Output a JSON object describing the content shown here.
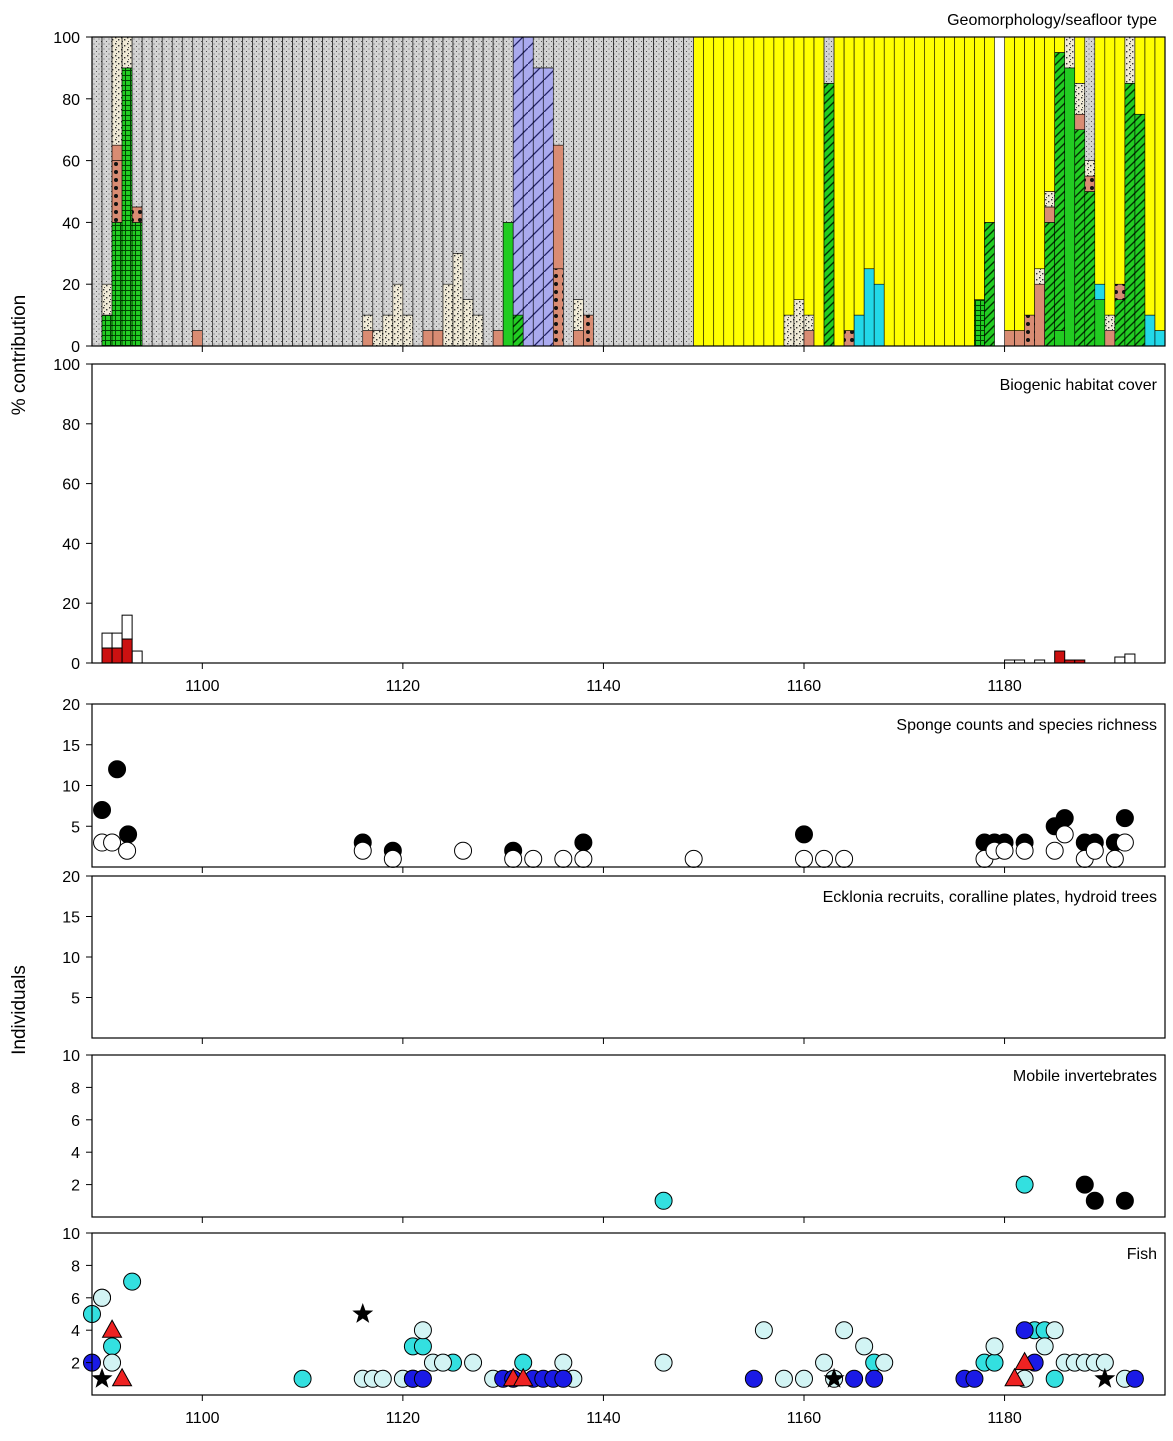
{
  "colors": {
    "grey_substrate": "#d3d3d3",
    "sand_stipple": "#f0ead6",
    "terracotta": "#d98c73",
    "green": "#22cc22",
    "lavender": "#aaaaee",
    "yellow": "#ffff00",
    "cyan": "#22d8e8",
    "red_bar": "#cc1111",
    "fish_cyan": "#33e0e0",
    "fish_pale": "#d2f4f4",
    "fish_blue": "#1a1ae6",
    "fish_red": "#ee2222"
  },
  "y_axis_labels": {
    "top": "% contribution",
    "bottom": "Individuals"
  },
  "chart_data": [
    {
      "type": "bar",
      "title": "Geomorphology/seafloor type",
      "ylim": [
        0,
        100
      ],
      "yticks": [
        0,
        20,
        40,
        60,
        80,
        100
      ],
      "xlim": [
        1089,
        1196
      ],
      "xticks": [
        1100,
        1120,
        1140,
        1160,
        1180
      ],
      "stacked": true,
      "gaps_at_x": [
        1179
      ],
      "default_column": {
        "grey": 100
      },
      "columns": [
        {
          "x": 1089,
          "grey": 100
        },
        {
          "x": 1090,
          "green_check": 10,
          "sand": 10,
          "grey": 80
        },
        {
          "x": 1091,
          "green_check": 40,
          "dots": 20,
          "terracotta": 5,
          "sand": 35
        },
        {
          "x": 1092,
          "green_check": 90,
          "sand": 10
        },
        {
          "x": 1093,
          "green_check": 40,
          "dots": 5,
          "grey": 55
        },
        {
          "x": 1099,
          "terracotta": 5,
          "grey": 95
        },
        {
          "x": 1116,
          "terracotta": 5,
          "sand": 5,
          "grey": 90
        },
        {
          "x": 1117,
          "sand": 5,
          "grey": 95
        },
        {
          "x": 1118,
          "sand": 10,
          "grey": 90
        },
        {
          "x": 1119,
          "sand": 20,
          "grey": 80
        },
        {
          "x": 1120,
          "sand": 10,
          "grey": 90
        },
        {
          "x": 1122,
          "terracotta": 5,
          "grey": 95
        },
        {
          "x": 1123,
          "terracotta": 5,
          "grey": 95
        },
        {
          "x": 1124,
          "sand": 20,
          "grey": 80
        },
        {
          "x": 1125,
          "sand": 30,
          "grey": 70
        },
        {
          "x": 1126,
          "sand": 15,
          "grey": 85
        },
        {
          "x": 1127,
          "sand": 10,
          "grey": 90
        },
        {
          "x": 1129,
          "terracotta": 5,
          "grey": 95
        },
        {
          "x": 1130,
          "green": 40,
          "grey": 60
        },
        {
          "x": 1131,
          "green_hatch": 10,
          "lavender": 90
        },
        {
          "x": 1132,
          "lavender": 100
        },
        {
          "x": 1133,
          "lavender": 90,
          "grey": 10
        },
        {
          "x": 1134,
          "lavender": 90,
          "grey": 10
        },
        {
          "x": 1135,
          "dots": 25,
          "terracotta": 40,
          "grey": 35
        },
        {
          "x": 1137,
          "terracotta": 5,
          "sand": 10,
          "grey": 85
        },
        {
          "x": 1138,
          "dots": 10,
          "grey": 90
        },
        {
          "x": 1149,
          "yellow": 100
        },
        {
          "x": 1150,
          "yellow": 100
        },
        {
          "x": 1151,
          "yellow": 100
        },
        {
          "x": 1152,
          "yellow": 100
        },
        {
          "x": 1153,
          "yellow": 100
        },
        {
          "x": 1154,
          "yellow": 100
        },
        {
          "x": 1155,
          "yellow": 100
        },
        {
          "x": 1156,
          "yellow": 100
        },
        {
          "x": 1157,
          "yellow": 100
        },
        {
          "x": 1158,
          "sand": 10,
          "yellow": 90
        },
        {
          "x": 1159,
          "sand": 15,
          "yellow": 85
        },
        {
          "x": 1160,
          "terracotta": 5,
          "sand": 5,
          "yellow": 90
        },
        {
          "x": 1161,
          "yellow": 100
        },
        {
          "x": 1162,
          "green_hatch": 85,
          "grey": 15
        },
        {
          "x": 1163,
          "yellow": 100
        },
        {
          "x": 1164,
          "dots": 5,
          "yellow": 95
        },
        {
          "x": 1165,
          "cyan": 10,
          "yellow": 90
        },
        {
          "x": 1166,
          "cyan": 25,
          "yellow": 75
        },
        {
          "x": 1167,
          "cyan": 20,
          "yellow": 80
        },
        {
          "x": 1168,
          "yellow": 100
        },
        {
          "x": 1169,
          "yellow": 100
        },
        {
          "x": 1170,
          "yellow": 100
        },
        {
          "x": 1171,
          "yellow": 100
        },
        {
          "x": 1172,
          "yellow": 100
        },
        {
          "x": 1173,
          "yellow": 100
        },
        {
          "x": 1174,
          "yellow": 100
        },
        {
          "x": 1175,
          "yellow": 100
        },
        {
          "x": 1176,
          "yellow": 100
        },
        {
          "x": 1177,
          "green_check": 15,
          "yellow": 85
        },
        {
          "x": 1178,
          "green_hatch": 40,
          "yellow": 60
        },
        {
          "x": 1180,
          "terracotta": 5,
          "yellow": 95
        },
        {
          "x": 1181,
          "terracotta": 5,
          "yellow": 95
        },
        {
          "x": 1182,
          "dots": 10,
          "yellow": 90
        },
        {
          "x": 1183,
          "terracotta": 20,
          "sand": 5,
          "yellow": 75
        },
        {
          "x": 1184,
          "green_hatch": 40,
          "terracotta": 5,
          "sand": 5,
          "yellow": 50
        },
        {
          "x": 1185,
          "green": 5,
          "green_hatch": 90,
          "yellow": 5
        },
        {
          "x": 1186,
          "green": 90,
          "sand": 10
        },
        {
          "x": 1187,
          "green_hatch": 70,
          "terracotta": 5,
          "sand": 10,
          "yellow": 15
        },
        {
          "x": 1188,
          "green_hatch": 50,
          "dots": 5,
          "sand": 5,
          "grey": 40
        },
        {
          "x": 1189,
          "green": 15,
          "cyan": 5,
          "yellow": 80
        },
        {
          "x": 1190,
          "terracotta": 5,
          "sand": 5,
          "yellow": 90
        },
        {
          "x": 1191,
          "green_hatch": 15,
          "dots": 5,
          "yellow": 80
        },
        {
          "x": 1192,
          "green_hatch": 85,
          "sand": 15
        },
        {
          "x": 1193,
          "green_hatch": 75,
          "yellow": 25
        },
        {
          "x": 1194,
          "cyan": 10,
          "yellow": 90
        },
        {
          "x": 1195,
          "cyan": 5,
          "yellow": 95
        }
      ]
    },
    {
      "type": "bar",
      "title": "Biogenic habitat cover",
      "ylim": [
        0,
        100
      ],
      "yticks": [
        0,
        20,
        40,
        60,
        80,
        100
      ],
      "xlim": [
        1089,
        1196
      ],
      "xticks": [
        1100,
        1120,
        1140,
        1160,
        1180
      ],
      "series": [
        {
          "name": "red",
          "x": [
            1090,
            1091,
            1092,
            1185,
            1186,
            1187
          ],
          "values": [
            5,
            5,
            8,
            4,
            1,
            1
          ]
        },
        {
          "name": "white",
          "x": [
            1090,
            1091,
            1092,
            1093,
            1180,
            1181,
            1183,
            1185,
            1186,
            1187,
            1191,
            1192
          ],
          "values": [
            5,
            5,
            8,
            4,
            1,
            1,
            1,
            0,
            0,
            0,
            2,
            3
          ]
        }
      ]
    },
    {
      "type": "scatter",
      "title": "Sponge counts and species richness",
      "ylim": [
        0,
        20
      ],
      "yticks": [
        5,
        10,
        15,
        20
      ],
      "xlim": [
        1089,
        1196
      ],
      "xticks": [
        1100,
        1120,
        1140,
        1160,
        1180
      ],
      "series": [
        {
          "name": "black",
          "x": [
            1090,
            1091.5,
            1092.6,
            1116,
            1119,
            1131,
            1138,
            1160,
            1178,
            1179,
            1180,
            1182,
            1185,
            1186,
            1188,
            1189,
            1191,
            1192
          ],
          "y": [
            7,
            12,
            4,
            3,
            2,
            2,
            3,
            4,
            3,
            3,
            3,
            3,
            5,
            6,
            3,
            3,
            3,
            6
          ]
        },
        {
          "name": "white",
          "x": [
            1090,
            1091,
            1092.5,
            1116,
            1119,
            1126,
            1131,
            1133,
            1136,
            1138,
            1149,
            1160,
            1162,
            1164,
            1178,
            1179,
            1180,
            1182,
            1185,
            1186,
            1188,
            1189,
            1191,
            1192
          ],
          "y": [
            3,
            3,
            2,
            2,
            1,
            2,
            1,
            1,
            1,
            1,
            1,
            1,
            1,
            1,
            1,
            2,
            2,
            2,
            2,
            4,
            1,
            2,
            1,
            3
          ]
        }
      ]
    },
    {
      "type": "scatter",
      "title": "Ecklonia recruits, coralline plates, hydroid trees",
      "ylim": [
        0,
        20
      ],
      "yticks": [
        5,
        10,
        15,
        20
      ],
      "xlim": [
        1089,
        1196
      ],
      "xticks": [
        1100,
        1120,
        1140,
        1160,
        1180
      ],
      "series": []
    },
    {
      "type": "scatter",
      "title": "Mobile invertebrates",
      "ylim": [
        0,
        10
      ],
      "yticks": [
        2,
        4,
        6,
        8,
        10
      ],
      "xlim": [
        1089,
        1196
      ],
      "xticks": [
        1100,
        1120,
        1140,
        1160,
        1180
      ],
      "series": [
        {
          "name": "cyan",
          "x": [
            1146,
            1182
          ],
          "y": [
            1,
            2
          ]
        },
        {
          "name": "black",
          "x": [
            1188,
            1189,
            1192
          ],
          "y": [
            2,
            1,
            1
          ]
        }
      ]
    },
    {
      "type": "scatter",
      "title": "Fish",
      "ylim": [
        0,
        10
      ],
      "yticks": [
        2,
        4,
        6,
        8,
        10
      ],
      "xlim": [
        1089,
        1196
      ],
      "xticks": [
        1100,
        1120,
        1140,
        1160,
        1180
      ],
      "series": [
        {
          "name": "cyan",
          "x": [
            1089,
            1090,
            1091,
            1093,
            1110,
            1121,
            1122,
            1125,
            1132,
            1167,
            1178,
            1179,
            1183,
            1184,
            1185
          ],
          "y": [
            5,
            6,
            3,
            7,
            1,
            3,
            3,
            2,
            2,
            2,
            2,
            2,
            4,
            4,
            1
          ]
        },
        {
          "name": "pale",
          "x": [
            1090,
            1091,
            1116,
            1117,
            1118,
            1120,
            1121,
            1122,
            1123,
            1124,
            1127,
            1129,
            1136,
            1137,
            1146,
            1156,
            1158,
            1160,
            1162,
            1163,
            1164,
            1166,
            1168,
            1179,
            1182,
            1184,
            1185,
            1186,
            1187,
            1188,
            1189,
            1190,
            1192
          ],
          "y": [
            6,
            2,
            1,
            1,
            1,
            1,
            1,
            4,
            2,
            2,
            2,
            1,
            2,
            1,
            2,
            4,
            1,
            1,
            2,
            1,
            4,
            3,
            2,
            3,
            1,
            3,
            4,
            2,
            2,
            2,
            2,
            2,
            1
          ]
        },
        {
          "name": "blue",
          "x": [
            1089,
            1121,
            1122,
            1130,
            1131,
            1133,
            1134,
            1135,
            1136,
            1155,
            1165,
            1167,
            1176,
            1177,
            1182,
            1183,
            1193
          ],
          "y": [
            2,
            1,
            1,
            1,
            1,
            1,
            1,
            1,
            1,
            1,
            1,
            1,
            1,
            1,
            4,
            2,
            1
          ]
        },
        {
          "name": "triangle",
          "x": [
            1091,
            1092,
            1131,
            1132,
            1181,
            1182
          ],
          "y": [
            4,
            1,
            1,
            1,
            1,
            2
          ]
        },
        {
          "name": "star",
          "x": [
            1090,
            1116,
            1163,
            1190
          ],
          "y": [
            1,
            5,
            1,
            1
          ]
        }
      ]
    }
  ]
}
